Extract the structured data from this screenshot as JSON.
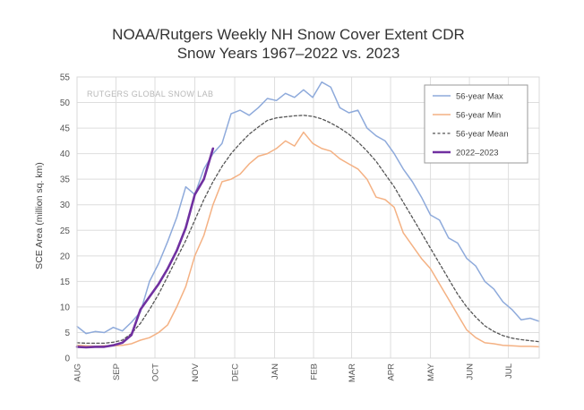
{
  "chart_data": {
    "type": "line",
    "title": "NOAA/Rutgers Weekly NH Snow Cover Extent CDR",
    "subtitle": "Snow Years 1967–2022 vs. 2023",
    "watermark": "RUTGERS GLOBAL SNOW LAB",
    "xlabel": "",
    "ylabel": "SCE Area (million sq. km)",
    "ylim": [
      0,
      55
    ],
    "yticks": [
      0,
      5,
      10,
      15,
      20,
      25,
      30,
      35,
      40,
      45,
      50,
      55
    ],
    "xlim": [
      0,
      51
    ],
    "months": [
      {
        "label": "AUG",
        "week": 0
      },
      {
        "label": "SEP",
        "week": 4.3
      },
      {
        "label": "OCT",
        "week": 8.6
      },
      {
        "label": "NOV",
        "week": 13
      },
      {
        "label": "DEC",
        "week": 17.4
      },
      {
        "label": "JAN",
        "week": 21.8
      },
      {
        "label": "FEB",
        "week": 26.1
      },
      {
        "label": "MAR",
        "week": 30.3
      },
      {
        "label": "APR",
        "week": 34.6
      },
      {
        "label": "MAY",
        "week": 39
      },
      {
        "label": "JUN",
        "week": 43.3
      },
      {
        "label": "JUL",
        "week": 47.6
      }
    ],
    "grid": true,
    "legend_position": "top-right",
    "series": [
      {
        "name": "56-year Max",
        "color": "#8eaadb",
        "dash": "solid",
        "x": [
          0,
          1,
          2,
          3,
          4,
          5,
          6,
          7,
          8,
          9,
          10,
          11,
          12,
          13,
          14,
          15,
          16,
          17,
          18,
          19,
          20,
          21,
          22,
          23,
          24,
          25,
          26,
          27,
          28,
          29,
          30,
          31,
          32,
          33,
          34,
          35,
          36,
          37,
          38,
          39,
          40,
          41,
          42,
          43,
          44,
          45,
          46,
          47,
          48,
          49,
          50,
          51
        ],
        "values": [
          6.2,
          4.8,
          5.2,
          5.0,
          6.0,
          5.3,
          7.0,
          9.0,
          15.0,
          18.5,
          22.8,
          27.5,
          33.5,
          32.0,
          37.0,
          40.0,
          42.0,
          47.8,
          48.5,
          47.5,
          49.0,
          50.8,
          50.4,
          51.8,
          51.0,
          52.5,
          51.0,
          54.0,
          53.0,
          49.0,
          48.0,
          48.5,
          45.0,
          43.5,
          42.5,
          40.0,
          37.0,
          34.5,
          31.5,
          28.0,
          27.0,
          23.5,
          22.5,
          19.5,
          18.0,
          15.0,
          13.5,
          11.0,
          9.5,
          7.5,
          7.8,
          7.2
        ]
      },
      {
        "name": "56-year Min",
        "color": "#f4b183",
        "dash": "solid",
        "x": [
          0,
          1,
          2,
          3,
          4,
          5,
          6,
          7,
          8,
          9,
          10,
          11,
          12,
          13,
          14,
          15,
          16,
          17,
          18,
          19,
          20,
          21,
          22,
          23,
          24,
          25,
          26,
          27,
          28,
          29,
          30,
          31,
          32,
          33,
          34,
          35,
          36,
          37,
          38,
          39,
          40,
          41,
          42,
          43,
          44,
          45,
          46,
          47,
          48,
          49,
          50,
          51
        ],
        "values": [
          2.5,
          2.4,
          2.3,
          2.4,
          2.4,
          2.5,
          2.8,
          3.5,
          4.0,
          5.0,
          6.5,
          10.0,
          14.0,
          20.0,
          24.0,
          30.0,
          34.5,
          35.0,
          36.0,
          38.0,
          39.5,
          40.0,
          41.0,
          42.5,
          41.5,
          44.2,
          42.0,
          41.0,
          40.5,
          39.0,
          38.0,
          37.0,
          35.0,
          31.5,
          31.0,
          29.5,
          24.5,
          22.0,
          19.5,
          17.5,
          14.5,
          11.5,
          8.5,
          5.5,
          4.0,
          3.0,
          2.8,
          2.5,
          2.4,
          2.3,
          2.3,
          2.2
        ]
      },
      {
        "name": "56-year Mean",
        "color": "#555555",
        "dash": "dashed",
        "x": [
          0,
          1,
          2,
          3,
          4,
          5,
          6,
          7,
          8,
          9,
          10,
          11,
          12,
          13,
          14,
          15,
          16,
          17,
          18,
          19,
          20,
          21,
          22,
          23,
          24,
          25,
          26,
          27,
          28,
          29,
          30,
          31,
          32,
          33,
          34,
          35,
          36,
          37,
          38,
          39,
          40,
          41,
          42,
          43,
          44,
          45,
          46,
          47,
          48,
          49,
          50,
          51
        ],
        "values": [
          3.0,
          2.9,
          2.9,
          2.9,
          3.1,
          3.5,
          4.8,
          6.8,
          9.5,
          12.5,
          16.0,
          19.5,
          23.0,
          27.0,
          31.0,
          34.5,
          37.5,
          40.0,
          42.0,
          43.8,
          45.2,
          46.5,
          47.0,
          47.2,
          47.4,
          47.5,
          47.3,
          46.8,
          46.0,
          45.0,
          43.8,
          42.3,
          40.5,
          38.5,
          36.0,
          33.5,
          30.5,
          27.5,
          24.5,
          21.5,
          18.5,
          15.5,
          12.5,
          10.0,
          8.0,
          6.3,
          5.2,
          4.4,
          3.9,
          3.6,
          3.4,
          3.2
        ]
      },
      {
        "name": "2022–2023",
        "color": "#7030a0",
        "dash": "solid",
        "x": [
          0,
          1,
          2,
          3,
          4,
          5,
          6,
          7,
          8,
          9,
          10,
          11,
          12,
          13,
          14,
          15
        ],
        "values": [
          2.2,
          2.1,
          2.2,
          2.2,
          2.5,
          3.0,
          4.5,
          9.5,
          12.0,
          14.5,
          17.5,
          21.0,
          25.5,
          32.0,
          35.0,
          41.0
        ]
      }
    ]
  }
}
